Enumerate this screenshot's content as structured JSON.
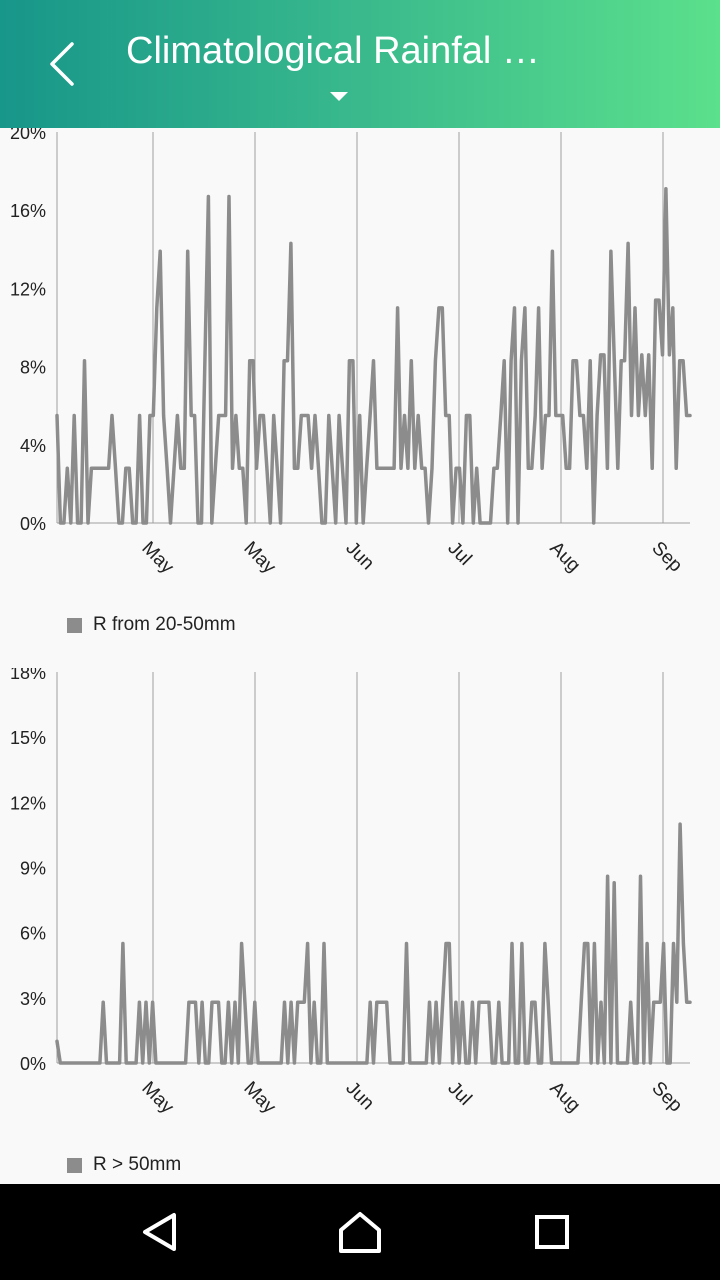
{
  "header": {
    "title": "Climatological Rainfal …",
    "back_icon": "chevron-left-icon",
    "dropdown_icon": "caret-down-icon"
  },
  "colors": {
    "line": "#8c8c8c",
    "grid": "#9e9e9e",
    "text": "#222222"
  },
  "chart_data": [
    {
      "type": "line",
      "ylim": [
        0,
        20
      ],
      "yticks": [
        "0%",
        "4%",
        "8%",
        "12%",
        "16%",
        "20%"
      ],
      "xtick_labels": [
        "May",
        "May",
        "Jun",
        "Jul",
        "Aug",
        "Sep"
      ],
      "legend_position": "bottom-left",
      "grid": "vertical",
      "series": [
        {
          "name": "R from 20-50mm",
          "values": [
            5.5,
            0,
            0,
            2.8,
            0,
            5.5,
            0,
            0,
            8.3,
            0,
            2.8,
            2.8,
            2.8,
            2.8,
            2.8,
            2.8,
            5.5,
            2.8,
            0,
            0,
            2.8,
            2.8,
            0,
            0,
            5.5,
            0,
            0,
            5.5,
            5.5,
            11,
            13.9,
            5.5,
            2.8,
            0,
            2.8,
            5.5,
            2.8,
            2.8,
            13.9,
            5.5,
            5.5,
            0,
            0,
            8.3,
            16.7,
            0,
            2.8,
            5.5,
            5.5,
            5.5,
            16.7,
            2.8,
            5.5,
            2.8,
            2.8,
            0,
            8.3,
            8.3,
            2.8,
            5.5,
            5.5,
            2.8,
            0,
            5.5,
            2.8,
            0,
            8.3,
            8.3,
            14.3,
            2.8,
            2.8,
            5.5,
            5.5,
            5.5,
            2.8,
            5.5,
            2.8,
            0,
            0,
            5.5,
            2.8,
            0,
            5.5,
            2.8,
            0,
            8.3,
            8.3,
            0,
            5.5,
            0,
            2.8,
            5.5,
            8.3,
            2.8,
            2.8,
            2.8,
            2.8,
            2.8,
            2.8,
            11,
            2.8,
            5.5,
            2.8,
            8.3,
            2.8,
            5.5,
            2.8,
            2.8,
            0,
            2.8,
            8.3,
            11,
            11,
            5.5,
            5.5,
            0,
            2.8,
            2.8,
            0,
            5.5,
            5.5,
            0,
            2.8,
            0,
            0,
            0,
            0,
            2.8,
            2.8,
            5.5,
            8.3,
            0,
            8.3,
            11,
            0,
            8.3,
            11,
            2.8,
            2.8,
            5.5,
            11,
            2.8,
            5.5,
            5.5,
            13.9,
            5.5,
            5.5,
            5.5,
            2.8,
            2.8,
            8.3,
            8.3,
            5.5,
            5.5,
            2.8,
            8.3,
            0,
            5.5,
            8.6,
            8.6,
            2.8,
            13.9,
            8.3,
            2.8,
            8.3,
            8.3,
            14.3,
            5.5,
            11,
            5.5,
            8.6,
            5.5,
            8.6,
            2.8,
            11.4,
            11.4,
            8.6,
            17.1,
            8.6,
            11,
            2.8,
            8.3,
            8.3,
            5.5,
            5.5
          ]
        }
      ]
    },
    {
      "type": "line",
      "ylim": [
        0,
        18
      ],
      "yticks": [
        "0%",
        "3%",
        "6%",
        "9%",
        "12%",
        "15%",
        "18%"
      ],
      "xtick_labels": [
        "May",
        "May",
        "Jun",
        "Jul",
        "Aug",
        "Sep"
      ],
      "legend_position": "bottom-left",
      "grid": "vertical",
      "series": [
        {
          "name": "R > 50mm",
          "values": [
            1,
            0,
            0,
            0,
            0,
            0,
            0,
            0,
            0,
            0,
            0,
            0,
            0,
            0,
            2.8,
            0,
            0,
            0,
            0,
            0,
            5.5,
            0,
            0,
            0,
            0,
            2.8,
            0,
            2.8,
            0,
            2.8,
            0,
            0,
            0,
            0,
            0,
            0,
            0,
            0,
            0,
            0,
            2.8,
            2.8,
            2.8,
            0,
            2.8,
            0,
            0,
            2.8,
            2.8,
            2.8,
            0,
            0,
            2.8,
            0,
            2.8,
            0,
            5.5,
            2.8,
            0,
            0,
            2.8,
            0,
            0,
            0,
            0,
            0,
            0,
            0,
            0,
            2.8,
            0,
            2.8,
            0,
            2.8,
            2.8,
            2.8,
            5.5,
            0,
            2.8,
            0,
            0,
            5.5,
            0,
            0,
            0,
            0,
            0,
            0,
            0,
            0,
            0,
            0,
            0,
            0,
            0,
            2.8,
            0,
            2.8,
            2.8,
            2.8,
            2.8,
            0,
            0,
            0,
            0,
            0,
            5.5,
            0,
            0,
            0,
            0,
            0,
            0,
            2.8,
            0,
            2.8,
            0,
            2.8,
            5.5,
            5.5,
            0,
            2.8,
            0,
            2.8,
            0,
            0,
            2.8,
            0,
            2.8,
            2.8,
            2.8,
            2.8,
            0,
            0,
            2.8,
            0,
            0,
            0,
            5.5,
            0,
            0,
            5.5,
            0,
            0,
            2.8,
            2.8,
            0,
            0,
            5.5,
            2.8,
            0,
            0,
            0,
            0,
            0,
            0,
            0,
            0,
            0,
            2.8,
            5.5,
            5.5,
            0,
            5.5,
            0,
            2.8,
            0,
            8.6,
            0,
            8.3,
            0,
            0,
            0,
            0,
            2.8,
            0,
            0,
            8.6,
            0,
            5.5,
            0,
            2.8,
            2.8,
            2.8,
            5.5,
            0,
            0,
            5.5,
            2.8,
            11,
            5.5,
            2.8,
            2.8
          ]
        }
      ]
    }
  ],
  "navbar": {
    "back_icon": "nav-back-triangle-icon",
    "home_icon": "nav-home-icon",
    "recents_icon": "nav-recents-square-icon"
  }
}
